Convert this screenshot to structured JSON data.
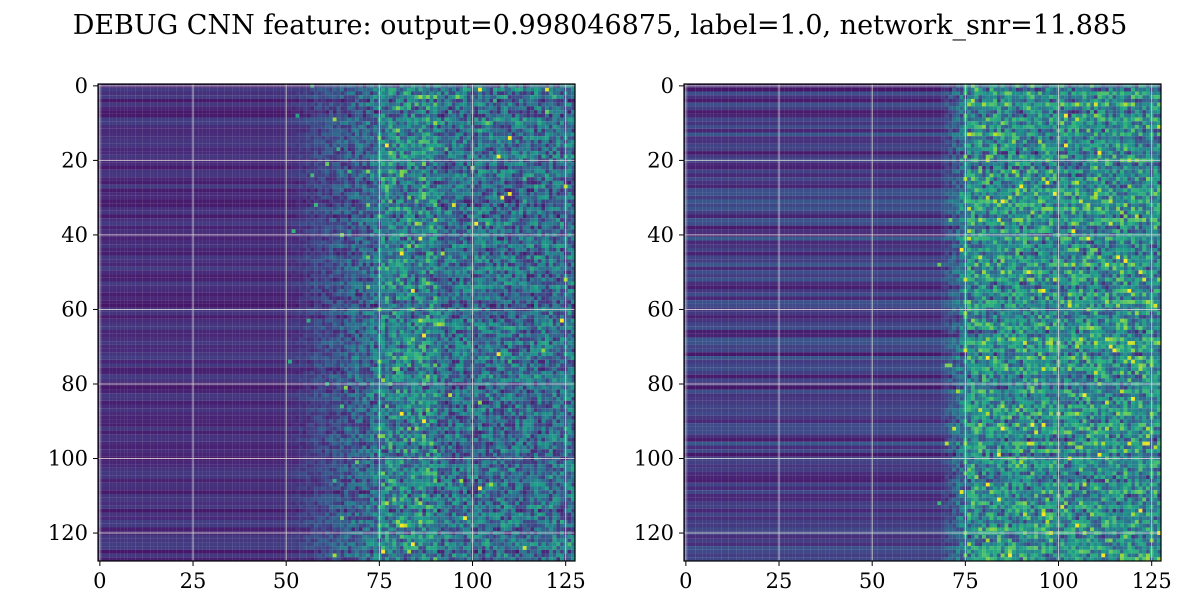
{
  "figure": {
    "suptitle": "DEBUG CNN feature: output=0.998046875, label=1.0, network_snr=11.885"
  },
  "chart_data": [
    {
      "type": "heatmap",
      "panel": "left",
      "colormap": "viridis",
      "rows": 128,
      "cols": 128,
      "xlim": [
        -0.5,
        127.5
      ],
      "ylim": [
        127.5,
        -0.5
      ],
      "x_ticks": [
        0,
        25,
        50,
        75,
        100,
        125
      ],
      "x_tick_labels": [
        "0",
        "25",
        "50",
        "75",
        "100",
        "125"
      ],
      "y_ticks": [
        0,
        20,
        40,
        60,
        80,
        100,
        120
      ],
      "y_tick_labels": [
        "0",
        "20",
        "40",
        "60",
        "80",
        "100",
        "120"
      ],
      "grid": true,
      "activity_onset_col": 50,
      "peak_activity_cols": [
        75,
        90
      ]
    },
    {
      "type": "heatmap",
      "panel": "right",
      "colormap": "viridis",
      "rows": 128,
      "cols": 128,
      "xlim": [
        -0.5,
        127.5
      ],
      "ylim": [
        127.5,
        -0.5
      ],
      "x_ticks": [
        0,
        25,
        50,
        75,
        100,
        125
      ],
      "x_tick_labels": [
        "0",
        "25",
        "50",
        "75",
        "100",
        "125"
      ],
      "y_ticks": [
        0,
        20,
        40,
        60,
        80,
        100,
        120
      ],
      "y_tick_labels": [
        "0",
        "20",
        "40",
        "60",
        "80",
        "100",
        "120"
      ],
      "grid": true,
      "activity_onset_col": 68,
      "peak_activity_cols": [
        75,
        128
      ]
    }
  ]
}
